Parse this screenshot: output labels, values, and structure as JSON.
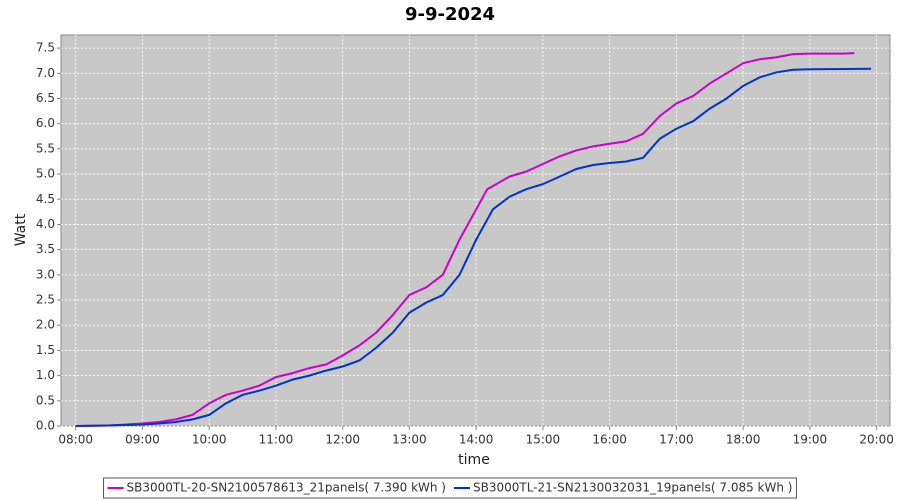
{
  "chart_data": {
    "type": "line",
    "title": "9-9-2024",
    "x_label": "time",
    "y_label": "Watt",
    "xlim": [
      7.78,
      20.2
    ],
    "ylim": [
      0,
      7.76
    ],
    "xticks": [
      {
        "value": 8,
        "label": "08:00"
      },
      {
        "value": 9,
        "label": "09:00"
      },
      {
        "value": 10,
        "label": "10:00"
      },
      {
        "value": 11,
        "label": "11:00"
      },
      {
        "value": 12,
        "label": "12:00"
      },
      {
        "value": 13,
        "label": "13:00"
      },
      {
        "value": 14,
        "label": "14:00"
      },
      {
        "value": 15,
        "label": "15:00"
      },
      {
        "value": 16,
        "label": "16:00"
      },
      {
        "value": 17,
        "label": "17:00"
      },
      {
        "value": 18,
        "label": "18:00"
      },
      {
        "value": 19,
        "label": "19:00"
      },
      {
        "value": 20,
        "label": "20:00"
      }
    ],
    "yticks": [
      {
        "value": 0,
        "label": "0.0"
      },
      0.5,
      {
        "value": 1,
        "label": "1.0"
      },
      1.5,
      {
        "value": 2,
        "label": "2.0"
      },
      2.5,
      {
        "value": 3,
        "label": "3.0"
      },
      3.5,
      {
        "value": 4,
        "label": "4.0"
      },
      4.5,
      {
        "value": 5,
        "label": "5.0"
      },
      5.5,
      {
        "value": 6,
        "label": "6.0"
      },
      6.5,
      {
        "value": 7,
        "label": "7.0"
      },
      7.5
    ],
    "grid": true,
    "legend": "bottom",
    "series": [
      {
        "name": "SB3000TL-20-SN2100578613_21panels( 7.390 kWh )",
        "color": "#cc00cc",
        "x": [
          8,
          8.5,
          9,
          9.25,
          9.5,
          9.75,
          10,
          10.25,
          10.5,
          10.75,
          11,
          11.25,
          11.5,
          11.75,
          12,
          12.25,
          12.5,
          12.75,
          13,
          13.25,
          13.5,
          13.75,
          14,
          14.167,
          14.5,
          14.75,
          15,
          15.25,
          15.5,
          15.75,
          16,
          16.25,
          16.5,
          16.75,
          17,
          17.25,
          17.5,
          17.75,
          18,
          18.25,
          18.5,
          18.75,
          19,
          19.5,
          19.667
        ],
        "values": [
          0,
          0.01,
          0.05,
          0.08,
          0.13,
          0.22,
          0.45,
          0.62,
          0.7,
          0.8,
          0.97,
          1.05,
          1.15,
          1.22,
          1.4,
          1.6,
          1.85,
          2.2,
          2.6,
          2.75,
          3.0,
          3.7,
          4.3,
          4.7,
          4.95,
          5.05,
          5.2,
          5.35,
          5.47,
          5.55,
          5.6,
          5.65,
          5.8,
          6.15,
          6.4,
          6.55,
          6.8,
          7.0,
          7.2,
          7.28,
          7.32,
          7.38,
          7.39,
          7.39,
          7.4
        ]
      },
      {
        "name": "SB3000TL-21-SN2130032031_19panels( 7.085 kWh )",
        "color": "#0033cc",
        "x": [
          8,
          8.5,
          9,
          9.25,
          9.5,
          9.75,
          10,
          10.25,
          10.5,
          10.75,
          11,
          11.25,
          11.5,
          11.75,
          12,
          12.25,
          12.5,
          12.75,
          13,
          13.25,
          13.5,
          13.75,
          14,
          14.25,
          14.5,
          14.75,
          15,
          15.25,
          15.5,
          15.75,
          16,
          16.25,
          16.5,
          16.75,
          17,
          17.25,
          17.5,
          17.75,
          18,
          18.25,
          18.5,
          18.75,
          19,
          19.5,
          19.917
        ],
        "values": [
          0,
          0.01,
          0.03,
          0.05,
          0.08,
          0.13,
          0.22,
          0.45,
          0.62,
          0.7,
          0.8,
          0.92,
          1.0,
          1.1,
          1.18,
          1.3,
          1.55,
          1.85,
          2.25,
          2.45,
          2.6,
          3.0,
          3.7,
          4.3,
          4.55,
          4.7,
          4.8,
          4.95,
          5.1,
          5.18,
          5.22,
          5.25,
          5.32,
          5.7,
          5.9,
          6.05,
          6.3,
          6.5,
          6.75,
          6.92,
          7.02,
          7.07,
          7.08,
          7.085,
          7.09
        ]
      }
    ]
  }
}
